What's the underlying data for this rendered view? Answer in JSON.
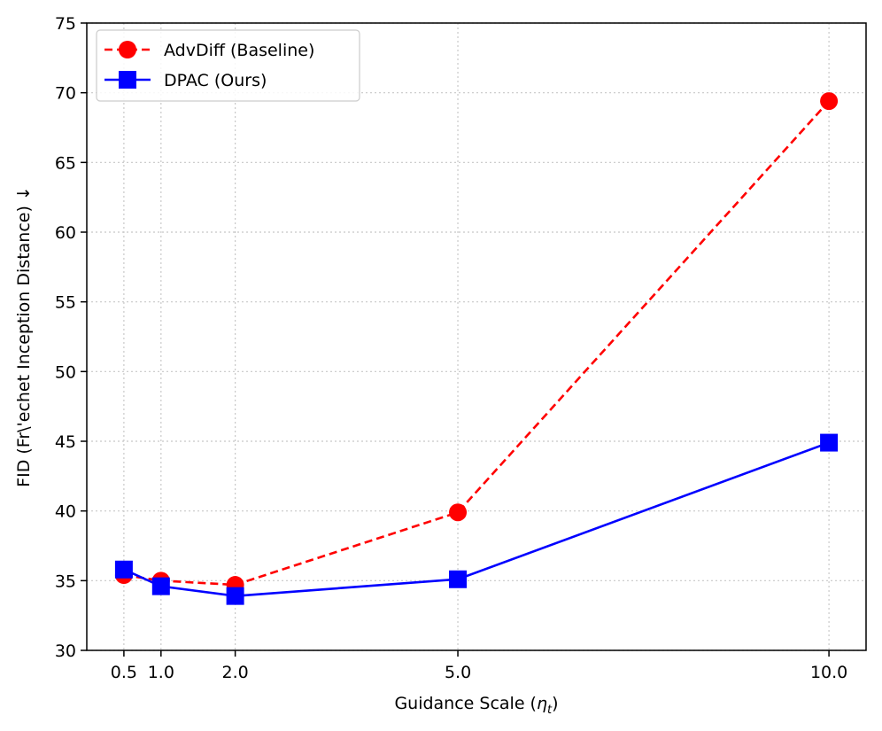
{
  "chart_data": {
    "type": "line",
    "xlabel": "Guidance Scale (",
    "xlabel_symbol": "η",
    "xlabel_subscript": "t",
    "xlabel_close": ")",
    "ylabel": "FID (Fr\\'echet Inception Distance)  ↓",
    "x": [
      0.5,
      1.0,
      2.0,
      5.0,
      10.0
    ],
    "x_tick_labels": [
      "0.5",
      "1.0",
      "2.0",
      "5.0",
      "10.0"
    ],
    "y_ticks": [
      30,
      35,
      40,
      45,
      50,
      55,
      60,
      65,
      70,
      75
    ],
    "y_tick_labels": [
      "30",
      "35",
      "40",
      "45",
      "50",
      "55",
      "60",
      "65",
      "70",
      "75"
    ],
    "xlim": [
      0.0,
      10.5
    ],
    "ylim": [
      30,
      75
    ],
    "grid": true,
    "legend_position": "top-left",
    "series": [
      {
        "name": "AdvDiff (Baseline)",
        "values": [
          35.4,
          35.0,
          34.7,
          39.9,
          69.4
        ],
        "color": "#ff0000",
        "line_style": "dashed",
        "marker": "circle"
      },
      {
        "name": "DPAC (Ours)",
        "values": [
          35.8,
          34.6,
          33.9,
          35.1,
          44.9
        ],
        "color": "#0000ff",
        "line_style": "solid",
        "marker": "square"
      }
    ]
  }
}
